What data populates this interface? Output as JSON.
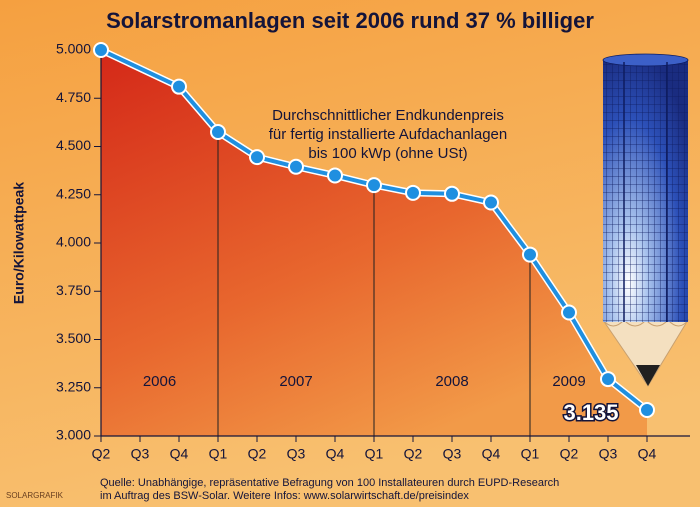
{
  "chart_data": {
    "type": "line",
    "title": "Solarstromanlagen seit 2006 rund 37 % billiger",
    "y_label": "Euro/Kilowattpeak",
    "annotation": [
      "Durchschnittlicher Endkundenpreis",
      "für fertig installierte Aufdachanlagen",
      "bis 100 kWp (ohne USt)"
    ],
    "categories": [
      "Q2",
      "Q3",
      "Q4",
      "Q1",
      "Q2",
      "Q3",
      "Q4",
      "Q1",
      "Q2",
      "Q3",
      "Q4",
      "Q1",
      "Q2",
      "Q3",
      "Q4"
    ],
    "years": [
      {
        "label": "2006",
        "start": 0,
        "end": 2
      },
      {
        "label": "2007",
        "start": 3,
        "end": 6
      },
      {
        "label": "2008",
        "start": 7,
        "end": 10
      },
      {
        "label": "2009",
        "start": 11,
        "end": 14
      }
    ],
    "series": [
      {
        "name": "Endkundenpreis",
        "color": "#1f8fe0",
        "values": [
          5000,
          null,
          4810,
          4575,
          4445,
          4395,
          4350,
          4300,
          4260,
          4255,
          4210,
          3940,
          3640,
          3295,
          3135
        ],
        "value_labels": [
          null,
          null,
          null,
          null,
          null,
          null,
          null,
          null,
          null,
          null,
          null,
          null,
          null,
          null,
          "3.135"
        ]
      }
    ],
    "ylim": [
      3000,
      5000
    ],
    "yticks": [
      {
        "value": 3000,
        "label": "3.000"
      },
      {
        "value": 3250,
        "label": "3.250"
      },
      {
        "value": 3500,
        "label": "3.500"
      },
      {
        "value": 3750,
        "label": "3.750"
      },
      {
        "value": 4000,
        "label": "4.000"
      },
      {
        "value": 4250,
        "label": "4.250"
      },
      {
        "value": 4500,
        "label": "4.500"
      },
      {
        "value": 4750,
        "label": "4.750"
      },
      {
        "value": 5000,
        "label": "5.000"
      }
    ],
    "source": [
      "Quelle: Unabhängige, repräsentative Befragung von 100 Installateuren durch EUPD-Research",
      "im Auftrag des BSW-Solar. Weitere Infos: www.solarwirtschaft.de/preisindex"
    ],
    "credit": "SOLARGRAFIK"
  }
}
